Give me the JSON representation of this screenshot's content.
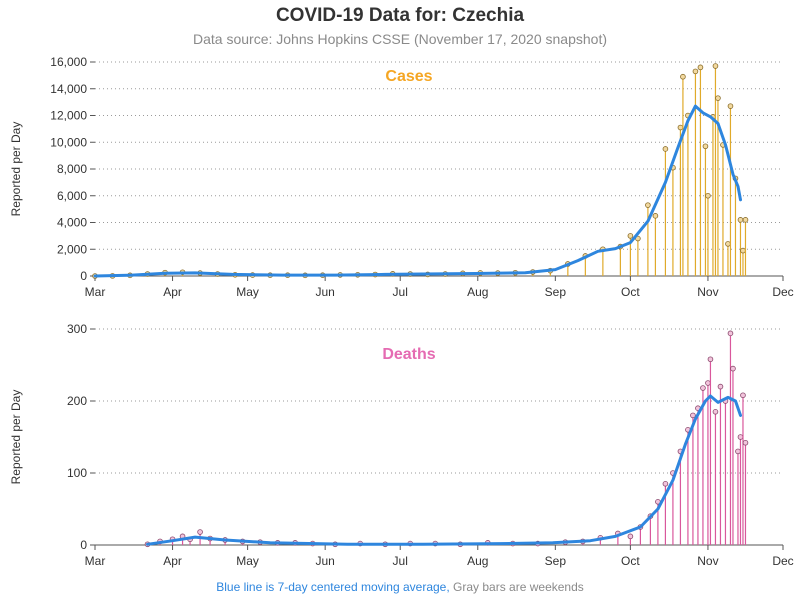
{
  "title": "COVID-19 Data for: Czechia",
  "subtitle": "Data source: Johns Hopkins CSSE (November 17, 2020 snapshot)",
  "footnote": {
    "blue_part": "Blue line is 7-day centered moving average,",
    "gray_part": "Gray bars are weekends"
  },
  "colors": {
    "cases": "#f5a623",
    "cases_bar": "#e0aa2a",
    "deaths": "#e56bb2",
    "deaths_bar": "#d9579c",
    "moving_average": "#2e86de",
    "marker_fill": "#f2d9a0",
    "deaths_marker_fill": "#f2c4dc",
    "text": "#333333",
    "muted": "#8a8a8a"
  },
  "chart_data": [
    {
      "type": "bar",
      "title": "Cases",
      "ylabel": "Reported per Day",
      "ylim": [
        0,
        16000
      ],
      "yticks": [
        "0",
        "2,000",
        "4,000",
        "6,000",
        "8,000",
        "10,000",
        "12,000",
        "14,000",
        "16,000"
      ],
      "ytick_values": [
        0,
        2000,
        4000,
        6000,
        8000,
        10000,
        12000,
        14000,
        16000
      ],
      "xticks": [
        "Mar",
        "Apr",
        "May",
        "Jun",
        "Jul",
        "Aug",
        "Sep",
        "Oct",
        "Nov",
        "Dec"
      ],
      "xtick_dates": [
        "2020-03-01",
        "2020-04-01",
        "2020-05-01",
        "2020-06-01",
        "2020-07-01",
        "2020-08-01",
        "2020-09-01",
        "2020-10-01",
        "2020-11-01",
        "2020-12-01"
      ],
      "grid": "horizontal dotted",
      "series": [
        {
          "kind": "bars",
          "points": [
            [
              "2020-03-01",
              0
            ],
            [
              "2020-03-08",
              10
            ],
            [
              "2020-03-15",
              50
            ],
            [
              "2020-03-22",
              150
            ],
            [
              "2020-03-29",
              250
            ],
            [
              "2020-04-05",
              280
            ],
            [
              "2020-04-12",
              220
            ],
            [
              "2020-04-19",
              150
            ],
            [
              "2020-04-26",
              90
            ],
            [
              "2020-05-03",
              70
            ],
            [
              "2020-05-10",
              60
            ],
            [
              "2020-05-17",
              60
            ],
            [
              "2020-05-24",
              50
            ],
            [
              "2020-05-31",
              60
            ],
            [
              "2020-06-07",
              80
            ],
            [
              "2020-06-14",
              90
            ],
            [
              "2020-06-21",
              110
            ],
            [
              "2020-06-28",
              160
            ],
            [
              "2020-07-05",
              150
            ],
            [
              "2020-07-12",
              120
            ],
            [
              "2020-07-19",
              150
            ],
            [
              "2020-07-26",
              200
            ],
            [
              "2020-08-02",
              230
            ],
            [
              "2020-08-09",
              220
            ],
            [
              "2020-08-16",
              240
            ],
            [
              "2020-08-23",
              300
            ],
            [
              "2020-08-30",
              400
            ],
            [
              "2020-09-06",
              900
            ],
            [
              "2020-09-13",
              1500
            ],
            [
              "2020-09-20",
              2000
            ],
            [
              "2020-09-27",
              2200
            ],
            [
              "2020-10-01",
              3000
            ],
            [
              "2020-10-04",
              2800
            ],
            [
              "2020-10-08",
              5300
            ],
            [
              "2020-10-11",
              4500
            ],
            [
              "2020-10-15",
              9500
            ],
            [
              "2020-10-18",
              8100
            ],
            [
              "2020-10-21",
              11100
            ],
            [
              "2020-10-22",
              14900
            ],
            [
              "2020-10-24",
              12000
            ],
            [
              "2020-10-27",
              15300
            ],
            [
              "2020-10-29",
              15600
            ],
            [
              "2020-10-31",
              9700
            ],
            [
              "2020-11-01",
              6000
            ],
            [
              "2020-11-03",
              11900
            ],
            [
              "2020-11-04",
              15700
            ],
            [
              "2020-11-05",
              13300
            ],
            [
              "2020-11-07",
              9800
            ],
            [
              "2020-11-09",
              2400
            ],
            [
              "2020-11-10",
              12700
            ],
            [
              "2020-11-12",
              7300
            ],
            [
              "2020-11-14",
              4200
            ],
            [
              "2020-11-15",
              1900
            ],
            [
              "2020-11-16",
              4200
            ]
          ]
        },
        {
          "kind": "line",
          "name": "7-day centered moving average",
          "points": [
            [
              "2020-03-01",
              0
            ],
            [
              "2020-03-15",
              60
            ],
            [
              "2020-03-29",
              200
            ],
            [
              "2020-04-10",
              230
            ],
            [
              "2020-04-25",
              120
            ],
            [
              "2020-05-15",
              70
            ],
            [
              "2020-06-05",
              70
            ],
            [
              "2020-06-25",
              120
            ],
            [
              "2020-07-10",
              150
            ],
            [
              "2020-07-31",
              190
            ],
            [
              "2020-08-20",
              250
            ],
            [
              "2020-09-01",
              480
            ],
            [
              "2020-09-10",
              1150
            ],
            [
              "2020-09-18",
              1850
            ],
            [
              "2020-09-25",
              2050
            ],
            [
              "2020-10-01",
              2500
            ],
            [
              "2020-10-08",
              4100
            ],
            [
              "2020-10-15",
              7000
            ],
            [
              "2020-10-20",
              9600
            ],
            [
              "2020-10-24",
              11600
            ],
            [
              "2020-10-27",
              12700
            ],
            [
              "2020-10-30",
              12200
            ],
            [
              "2020-11-02",
              11900
            ],
            [
              "2020-11-05",
              11400
            ],
            [
              "2020-11-08",
              9800
            ],
            [
              "2020-11-11",
              7600
            ],
            [
              "2020-11-13",
              6700
            ],
            [
              "2020-11-14",
              5700
            ]
          ]
        }
      ]
    },
    {
      "type": "bar",
      "title": "Deaths",
      "ylabel": "Reported per Day",
      "ylim": [
        0,
        300
      ],
      "yticks": [
        "0",
        "100",
        "200",
        "300"
      ],
      "ytick_values": [
        0,
        100,
        200,
        300
      ],
      "xticks": [
        "Mar",
        "Apr",
        "May",
        "Jun",
        "Jul",
        "Aug",
        "Sep",
        "Oct",
        "Nov",
        "Dec"
      ],
      "xtick_dates": [
        "2020-03-01",
        "2020-04-01",
        "2020-05-01",
        "2020-06-01",
        "2020-07-01",
        "2020-08-01",
        "2020-09-01",
        "2020-10-01",
        "2020-11-01",
        "2020-12-01"
      ],
      "grid": "horizontal dotted",
      "series": [
        {
          "kind": "bars",
          "points": [
            [
              "2020-03-22",
              1
            ],
            [
              "2020-03-27",
              5
            ],
            [
              "2020-04-01",
              8
            ],
            [
              "2020-04-05",
              12
            ],
            [
              "2020-04-08",
              8
            ],
            [
              "2020-04-12",
              18
            ],
            [
              "2020-04-16",
              9
            ],
            [
              "2020-04-22",
              7
            ],
            [
              "2020-04-29",
              5
            ],
            [
              "2020-05-06",
              4
            ],
            [
              "2020-05-13",
              3
            ],
            [
              "2020-05-20",
              3
            ],
            [
              "2020-05-27",
              2
            ],
            [
              "2020-06-05",
              1
            ],
            [
              "2020-06-15",
              2
            ],
            [
              "2020-06-25",
              1
            ],
            [
              "2020-07-05",
              2
            ],
            [
              "2020-07-15",
              2
            ],
            [
              "2020-07-25",
              1
            ],
            [
              "2020-08-05",
              3
            ],
            [
              "2020-08-15",
              2
            ],
            [
              "2020-08-25",
              2
            ],
            [
              "2020-09-05",
              4
            ],
            [
              "2020-09-12",
              5
            ],
            [
              "2020-09-19",
              10
            ],
            [
              "2020-09-26",
              16
            ],
            [
              "2020-10-01",
              12
            ],
            [
              "2020-10-05",
              25
            ],
            [
              "2020-10-09",
              40
            ],
            [
              "2020-10-12",
              60
            ],
            [
              "2020-10-15",
              85
            ],
            [
              "2020-10-18",
              100
            ],
            [
              "2020-10-21",
              130
            ],
            [
              "2020-10-24",
              160
            ],
            [
              "2020-10-26",
              180
            ],
            [
              "2020-10-28",
              190
            ],
            [
              "2020-10-30",
              218
            ],
            [
              "2020-11-01",
              225
            ],
            [
              "2020-11-02",
              258
            ],
            [
              "2020-11-04",
              185
            ],
            [
              "2020-11-06",
              220
            ],
            [
              "2020-11-08",
              200
            ],
            [
              "2020-11-10",
              294
            ],
            [
              "2020-11-11",
              245
            ],
            [
              "2020-11-13",
              130
            ],
            [
              "2020-11-14",
              150
            ],
            [
              "2020-11-15",
              208
            ],
            [
              "2020-11-16",
              142
            ]
          ]
        },
        {
          "kind": "line",
          "name": "7-day centered moving average",
          "points": [
            [
              "2020-03-22",
              1
            ],
            [
              "2020-04-01",
              6
            ],
            [
              "2020-04-10",
              11
            ],
            [
              "2020-04-22",
              7
            ],
            [
              "2020-05-10",
              3
            ],
            [
              "2020-06-10",
              1
            ],
            [
              "2020-07-10",
              1
            ],
            [
              "2020-08-10",
              2
            ],
            [
              "2020-08-31",
              3
            ],
            [
              "2020-09-15",
              6
            ],
            [
              "2020-09-25",
              12
            ],
            [
              "2020-10-05",
              25
            ],
            [
              "2020-10-12",
              50
            ],
            [
              "2020-10-18",
              90
            ],
            [
              "2020-10-23",
              140
            ],
            [
              "2020-10-27",
              175
            ],
            [
              "2020-10-31",
              200
            ],
            [
              "2020-11-02",
              207
            ],
            [
              "2020-11-05",
              198
            ],
            [
              "2020-11-09",
              205
            ],
            [
              "2020-11-12",
              200
            ],
            [
              "2020-11-14",
              180
            ]
          ]
        }
      ]
    }
  ]
}
